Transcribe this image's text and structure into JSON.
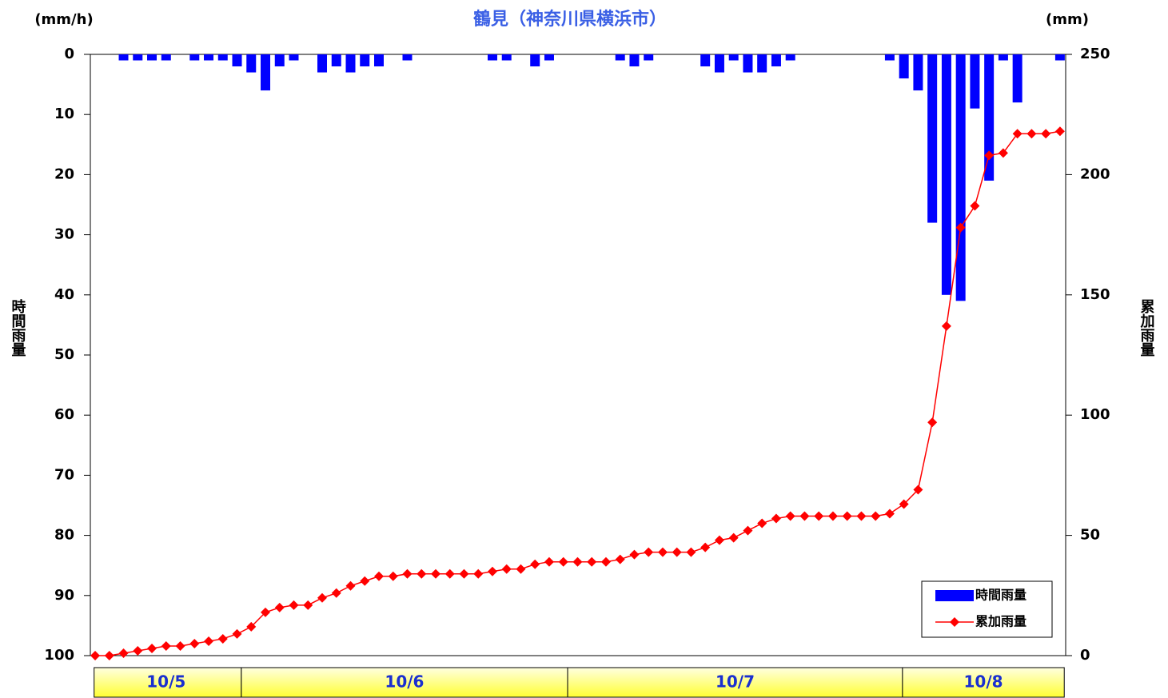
{
  "chart_data": {
    "type": "bar_line",
    "title": "鶴見（神奈川県横浜市）",
    "y_unit": "(mm/h)",
    "y2_unit": "(mm)",
    "y_label": "時間雨量",
    "y2_label": "累加雨量",
    "categories": [
      null,
      null,
      null,
      null,
      null,
      null,
      null,
      null,
      null,
      null,
      null,
      null,
      null,
      null,
      null,
      null,
      null,
      null,
      null,
      null,
      null,
      null,
      null,
      null,
      null,
      null,
      null,
      null,
      null,
      null,
      null,
      null,
      null,
      null,
      null,
      null,
      null,
      null,
      null,
      null,
      null,
      null,
      null,
      null,
      null,
      null,
      null,
      null,
      null,
      null,
      null,
      null,
      null,
      null,
      null,
      null,
      null,
      null,
      null,
      null,
      null,
      null,
      null,
      null,
      null,
      null,
      null,
      null,
      null
    ],
    "date_groups": [
      {
        "label": "10/5",
        "from": -0.3,
        "to": 10.3
      },
      {
        "label": "10/6",
        "from": 10.3,
        "to": 33.3
      },
      {
        "label": "10/7",
        "from": 33.3,
        "to": 56.9
      },
      {
        "label": "10/8",
        "from": 56.9,
        "to": 68.3
      }
    ],
    "xlim": [
      -0.34,
      68.4
    ],
    "series": [
      {
        "name": "時間雨量",
        "kind": "bar",
        "color": "#0000ff",
        "axis": "y",
        "values": [
          0,
          0,
          1,
          1,
          1,
          1,
          0,
          1,
          1,
          1,
          2,
          3,
          6,
          2,
          1,
          0,
          3,
          2,
          3,
          2,
          2,
          0,
          1,
          0,
          0,
          0,
          0,
          0,
          1,
          1,
          0,
          2,
          1,
          0,
          0,
          0,
          0,
          1,
          2,
          1,
          0,
          0,
          0,
          2,
          3,
          1,
          3,
          3,
          2,
          1,
          0,
          0,
          0,
          0,
          0,
          0,
          1,
          4,
          6,
          28,
          40,
          41,
          9,
          21,
          1,
          8,
          0,
          0,
          1
        ]
      },
      {
        "name": "累加雨量",
        "kind": "line",
        "color": "#ff0000",
        "axis": "y2",
        "values": [
          0,
          0,
          1,
          2,
          3,
          4,
          4,
          5,
          6,
          7,
          9,
          12,
          18,
          20,
          21,
          21,
          24,
          26,
          29,
          31,
          33,
          33,
          34,
          34,
          34,
          34,
          34,
          34,
          35,
          36,
          36,
          38,
          39,
          39,
          39,
          39,
          39,
          40,
          42,
          43,
          43,
          43,
          43,
          45,
          48,
          49,
          52,
          55,
          57,
          58,
          58,
          58,
          58,
          58,
          58,
          58,
          59,
          63,
          69,
          97,
          137,
          178,
          187,
          208,
          209,
          217,
          217,
          217,
          218
        ]
      }
    ],
    "ylim": [
      0,
      100
    ],
    "y_reversed": true,
    "yticks": [
      0,
      10,
      20,
      30,
      40,
      50,
      60,
      70,
      80,
      90,
      100
    ],
    "y2lim": [
      0,
      250
    ],
    "y2ticks": [
      0,
      50,
      100,
      150,
      200,
      250
    ],
    "legend": "bottom-right"
  }
}
